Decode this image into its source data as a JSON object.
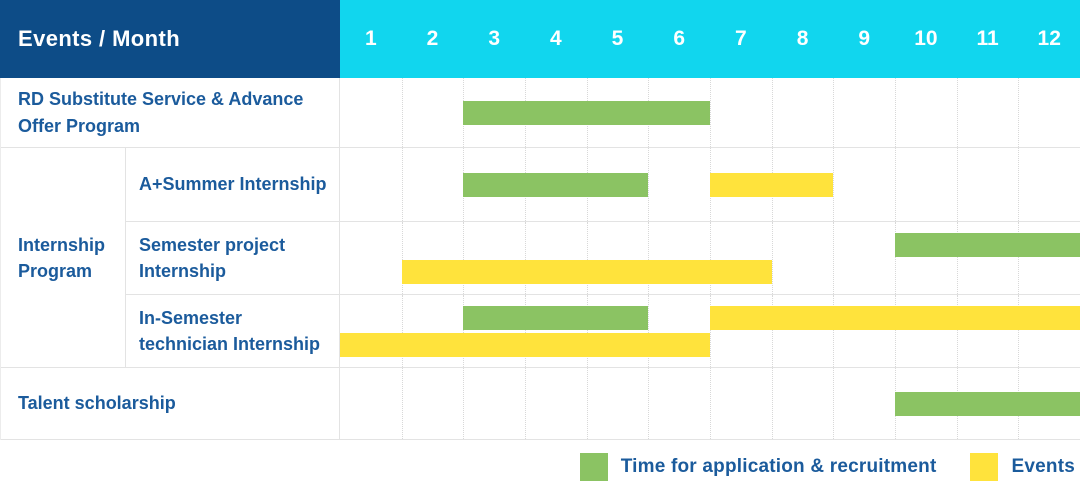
{
  "colors": {
    "header_bg": "#0d4c87",
    "months_bg": "#11d6ee",
    "application": "#8bc363",
    "event": "#ffe33c",
    "label_text": "#1b5b9c",
    "row_line": "#e3e3e3",
    "month_gridline": "#d8d8d8"
  },
  "header": {
    "title": "Events / Month"
  },
  "legend": {
    "items": [
      {
        "label": "Time for application & recruitment",
        "type": "application",
        "color": "#8bc363"
      },
      {
        "label": "Events",
        "type": "event",
        "color": "#ffe33c"
      }
    ]
  },
  "chart_data": {
    "type": "gantt",
    "title": "Events / Month",
    "months": [
      "1",
      "2",
      "3",
      "4",
      "5",
      "6",
      "7",
      "8",
      "9",
      "10",
      "11",
      "12"
    ],
    "bar_types": {
      "application": "Time for application & recruitment",
      "event": "Events"
    },
    "rows": [
      {
        "group": null,
        "label": "RD Substitute Service & Advance Offer Program",
        "bars": [
          {
            "type": "application",
            "start": 3,
            "end": 6,
            "line": "center"
          }
        ]
      },
      {
        "group": "Internship Program",
        "label": "A+Summer Internship",
        "bars": [
          {
            "type": "application",
            "start": 3,
            "end": 5,
            "line": "center"
          },
          {
            "type": "event",
            "start": 7,
            "end": 8,
            "line": "center"
          }
        ]
      },
      {
        "group": "Internship Program",
        "label": "Semester project Internship",
        "bars": [
          {
            "type": "application",
            "start": 10,
            "end": 12,
            "line": "top"
          },
          {
            "type": "event",
            "start": 2,
            "end": 7,
            "line": "bottom"
          }
        ]
      },
      {
        "group": "Internship Program",
        "label": "In-Semester technician Internship",
        "bars": [
          {
            "type": "application",
            "start": 3,
            "end": 5,
            "line": "top"
          },
          {
            "type": "event",
            "start": 7,
            "end": 12,
            "line": "top"
          },
          {
            "type": "event",
            "start": 1,
            "end": 6,
            "line": "bottom"
          }
        ]
      },
      {
        "group": null,
        "label": "Talent scholarship",
        "bars": [
          {
            "type": "application",
            "start": 10,
            "end": 12,
            "line": "center"
          }
        ]
      }
    ]
  }
}
